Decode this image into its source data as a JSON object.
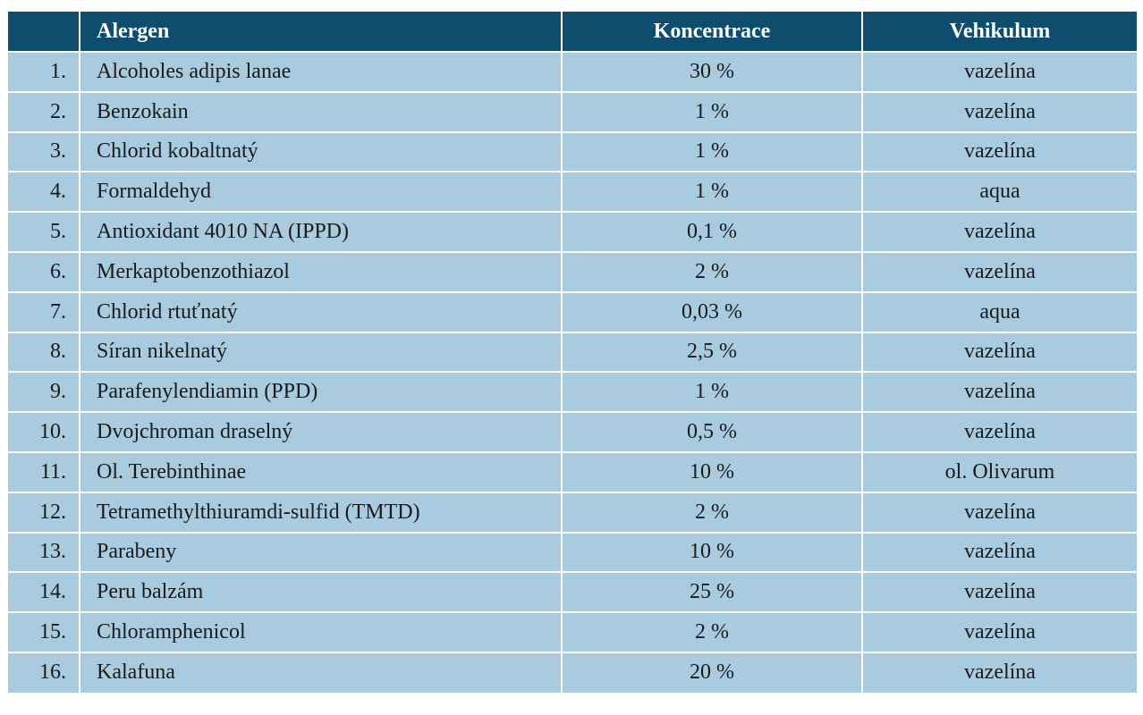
{
  "table": {
    "headers": {
      "number": "",
      "allergen": "Alergen",
      "concentration": "Koncentrace",
      "vehicle": "Vehikulum"
    },
    "rows": [
      {
        "num": "1.",
        "allergen": "Alcoholes adipis lanae",
        "concentration": "30 %",
        "vehicle": "vazelína"
      },
      {
        "num": "2.",
        "allergen": "Benzokain",
        "concentration": "1 %",
        "vehicle": "vazelína"
      },
      {
        "num": "3.",
        "allergen": "Chlorid kobaltnatý",
        "concentration": "1 %",
        "vehicle": "vazelína"
      },
      {
        "num": "4.",
        "allergen": "Formaldehyd",
        "concentration": "1 %",
        "vehicle": "aqua"
      },
      {
        "num": "5.",
        "allergen": "Antioxidant 4010 NA (IPPD)",
        "concentration": "0,1 %",
        "vehicle": "vazelína"
      },
      {
        "num": "6.",
        "allergen": "Merkaptobenzothiazol",
        "concentration": "2 %",
        "vehicle": "vazelína"
      },
      {
        "num": "7.",
        "allergen": "Chlorid rtuťnatý",
        "concentration": "0,03 %",
        "vehicle": "aqua"
      },
      {
        "num": "8.",
        "allergen": "Síran nikelnatý",
        "concentration": "2,5 %",
        "vehicle": "vazelína"
      },
      {
        "num": "9.",
        "allergen": "Parafenylendiamin (PPD)",
        "concentration": "1 %",
        "vehicle": "vazelína"
      },
      {
        "num": "10.",
        "allergen": "Dvojchroman draselný",
        "concentration": "0,5 %",
        "vehicle": "vazelína"
      },
      {
        "num": "11.",
        "allergen": "Ol. Terebinthinae",
        "concentration": "10 %",
        "vehicle": "ol. Olivarum"
      },
      {
        "num": "12.",
        "allergen": "Tetramethylthiuramdi-sulfid (TMTD)",
        "concentration": "2 %",
        "vehicle": "vazelína"
      },
      {
        "num": "13.",
        "allergen": "Parabeny",
        "concentration": "10 %",
        "vehicle": "vazelína"
      },
      {
        "num": "14.",
        "allergen": "Peru balzám",
        "concentration": "25 %",
        "vehicle": "vazelína"
      },
      {
        "num": "15.",
        "allergen": "Chloramphenicol",
        "concentration": "2 %",
        "vehicle": "vazelína"
      },
      {
        "num": "16.",
        "allergen": "Kalafuna",
        "concentration": "20 %",
        "vehicle": "vazelína"
      }
    ]
  },
  "colors": {
    "header_bg": "#0f4d6e",
    "header_text": "#ffffff",
    "row_bg": "#a9cbe0",
    "row_text": "#1a1a1a",
    "divider": "#ffffff"
  }
}
